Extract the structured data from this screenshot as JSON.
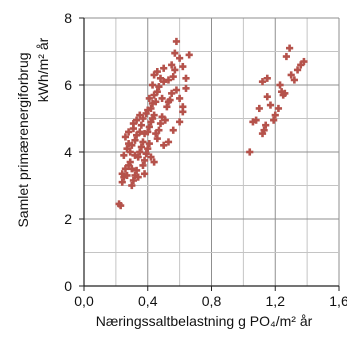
{
  "chart_data": {
    "type": "scatter",
    "title": "",
    "xlabel": "Næringssaltbelastning  g PO₄/m² år",
    "ylabel_line1": "Samlet primærenergiforbrug",
    "ylabel_line2": "kWh/m² år",
    "xlim": [
      0,
      1.6
    ],
    "ylim": [
      0,
      8
    ],
    "x_ticks": [
      0,
      0.4,
      0.8,
      1.2,
      1.6
    ],
    "x_tick_labels": [
      "0,0",
      "0,4",
      "0,8",
      "1,2",
      "1,6"
    ],
    "y_ticks": [
      0,
      2,
      4,
      6,
      8
    ],
    "y_tick_labels": [
      "0",
      "2",
      "4",
      "6",
      "8"
    ],
    "x_minor_step": 0.2,
    "y_minor_step": 1,
    "grid": true,
    "marker_color": "#b5524b",
    "marker_symbol": "cross",
    "series": [
      {
        "points": [
          [
            0.23,
            2.4
          ],
          [
            0.22,
            2.45
          ],
          [
            0.24,
            3.1
          ],
          [
            0.25,
            3.25
          ],
          [
            0.24,
            3.35
          ],
          [
            0.26,
            3.5
          ],
          [
            0.27,
            3.3
          ],
          [
            0.28,
            3.6
          ],
          [
            0.29,
            3.7
          ],
          [
            0.3,
            3.5
          ],
          [
            0.25,
            3.9
          ],
          [
            0.27,
            4.1
          ],
          [
            0.29,
            4.0
          ],
          [
            0.3,
            4.2
          ],
          [
            0.32,
            4.35
          ],
          [
            0.26,
            4.45
          ],
          [
            0.28,
            4.6
          ],
          [
            0.31,
            4.7
          ],
          [
            0.33,
            4.5
          ],
          [
            0.35,
            4.6
          ],
          [
            0.3,
            3.0
          ],
          [
            0.31,
            3.15
          ],
          [
            0.32,
            3.3
          ],
          [
            0.33,
            3.45
          ],
          [
            0.34,
            3.85
          ],
          [
            0.35,
            4.0
          ],
          [
            0.36,
            4.15
          ],
          [
            0.37,
            4.3
          ],
          [
            0.38,
            4.55
          ],
          [
            0.36,
            4.8
          ],
          [
            0.37,
            3.6
          ],
          [
            0.38,
            3.75
          ],
          [
            0.39,
            3.95
          ],
          [
            0.4,
            4.1
          ],
          [
            0.41,
            4.25
          ],
          [
            0.4,
            4.6
          ],
          [
            0.41,
            4.75
          ],
          [
            0.42,
            4.9
          ],
          [
            0.43,
            5.0
          ],
          [
            0.44,
            5.1
          ],
          [
            0.39,
            5.15
          ],
          [
            0.4,
            5.25
          ],
          [
            0.42,
            5.3
          ],
          [
            0.43,
            5.45
          ],
          [
            0.45,
            5.5
          ],
          [
            0.41,
            5.6
          ],
          [
            0.44,
            5.7
          ],
          [
            0.46,
            5.8
          ],
          [
            0.47,
            5.95
          ],
          [
            0.49,
            5.6
          ],
          [
            0.45,
            4.55
          ],
          [
            0.46,
            4.4
          ],
          [
            0.47,
            4.65
          ],
          [
            0.48,
            4.85
          ],
          [
            0.49,
            5.05
          ],
          [
            0.5,
            4.2
          ],
          [
            0.51,
            4.95
          ],
          [
            0.52,
            5.35
          ],
          [
            0.53,
            5.5
          ],
          [
            0.5,
            6.1
          ],
          [
            0.43,
            6.0
          ],
          [
            0.44,
            6.3
          ],
          [
            0.46,
            6.4
          ],
          [
            0.5,
            6.5
          ],
          [
            0.48,
            6.2
          ],
          [
            0.53,
            6.15
          ],
          [
            0.55,
            6.6
          ],
          [
            0.56,
            6.25
          ],
          [
            0.57,
            6.45
          ],
          [
            0.58,
            7.3
          ],
          [
            0.57,
            6.95
          ],
          [
            0.6,
            6.8
          ],
          [
            0.62,
            6.55
          ],
          [
            0.64,
            6.2
          ],
          [
            0.66,
            6.9
          ],
          [
            0.54,
            5.55
          ],
          [
            0.55,
            5.75
          ],
          [
            0.58,
            5.85
          ],
          [
            0.6,
            5.6
          ],
          [
            0.62,
            5.2
          ],
          [
            0.64,
            5.9
          ],
          [
            0.62,
            5.35
          ],
          [
            0.6,
            4.9
          ],
          [
            0.56,
            4.65
          ],
          [
            0.53,
            4.3
          ],
          [
            0.33,
            4.95
          ],
          [
            0.35,
            5.1
          ],
          [
            0.37,
            5.0
          ],
          [
            0.31,
            4.85
          ],
          [
            0.28,
            4.25
          ],
          [
            0.34,
            3.25
          ],
          [
            0.32,
            3.9
          ],
          [
            0.38,
            3.35
          ],
          [
            0.42,
            3.85
          ],
          [
            0.44,
            3.7
          ],
          [
            1.04,
            4.0
          ],
          [
            1.06,
            4.9
          ],
          [
            1.08,
            4.95
          ],
          [
            1.12,
            4.55
          ],
          [
            1.13,
            4.65
          ],
          [
            1.14,
            4.8
          ],
          [
            1.12,
            6.1
          ],
          [
            1.15,
            6.2
          ],
          [
            1.15,
            5.65
          ],
          [
            1.17,
            5.4
          ],
          [
            1.2,
            5.1
          ],
          [
            1.22,
            5.3
          ],
          [
            1.24,
            5.8
          ],
          [
            1.25,
            5.7
          ],
          [
            1.26,
            5.75
          ],
          [
            1.27,
            6.85
          ],
          [
            1.29,
            7.1
          ],
          [
            1.3,
            6.3
          ],
          [
            1.32,
            6.15
          ],
          [
            1.34,
            6.45
          ],
          [
            1.36,
            6.6
          ],
          [
            1.38,
            6.7
          ],
          [
            1.1,
            5.3
          ],
          [
            1.19,
            4.95
          ],
          [
            1.23,
            6.0
          ]
        ]
      }
    ]
  }
}
